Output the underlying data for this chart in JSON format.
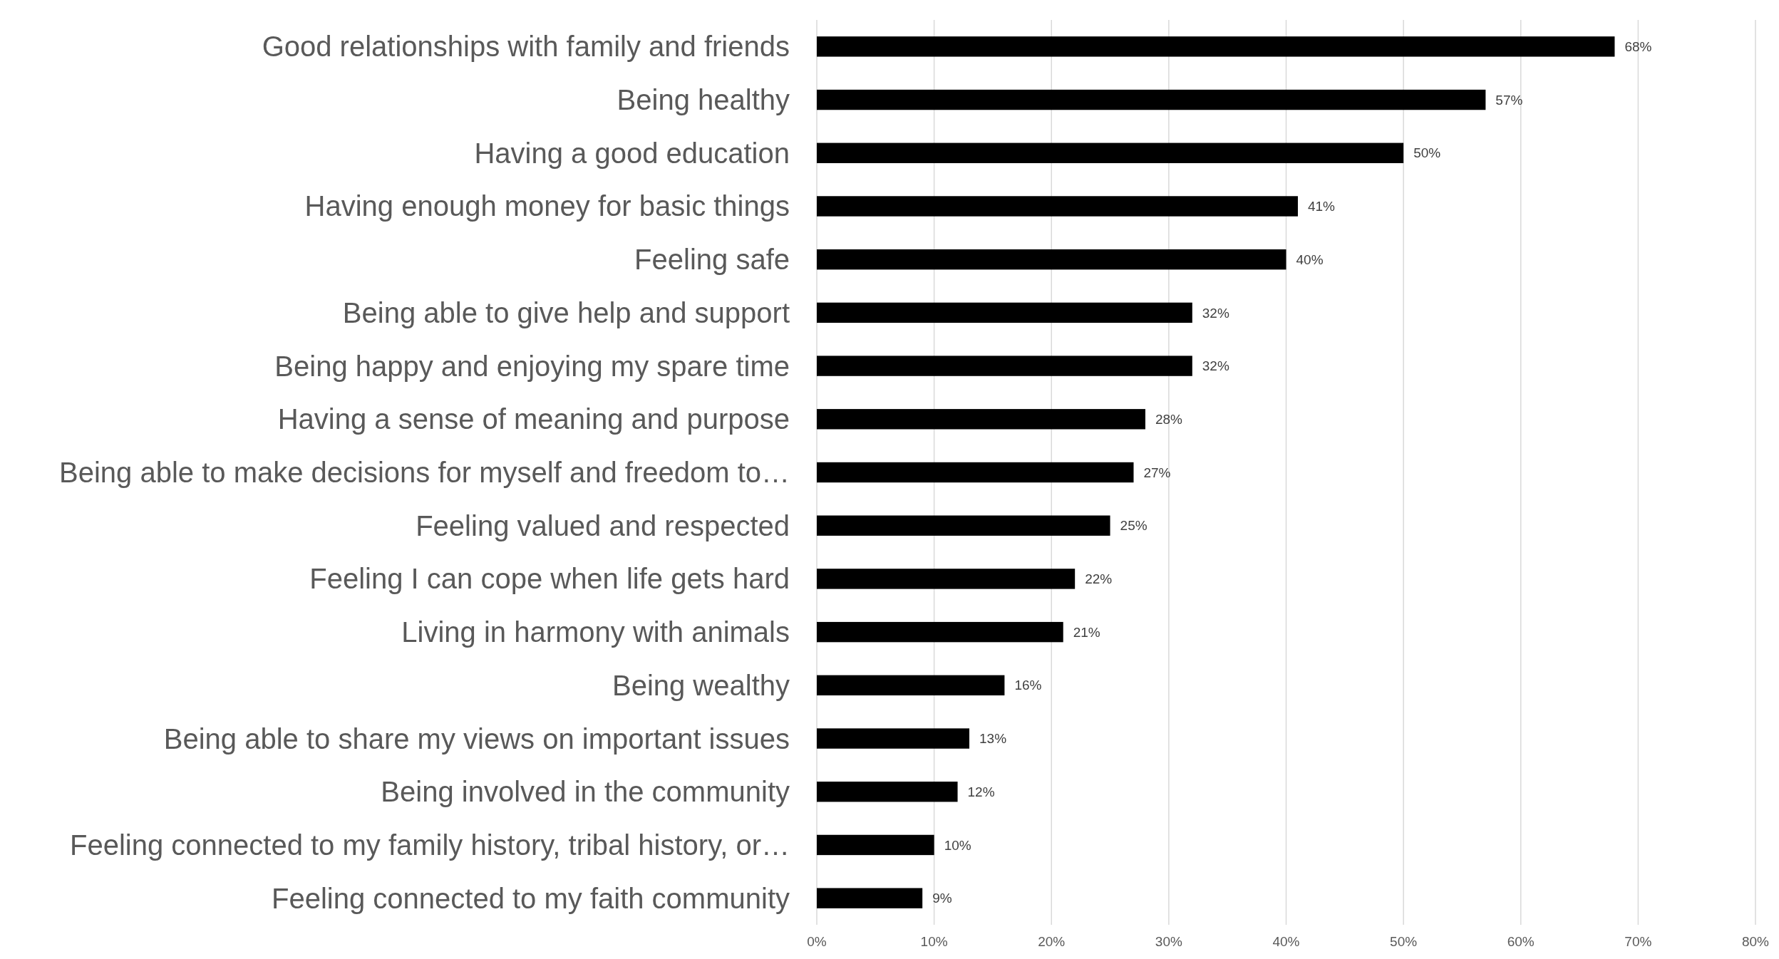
{
  "chart_data": {
    "type": "bar",
    "orientation": "horizontal",
    "categories": [
      "Good relationships with family and friends",
      "Being healthy",
      "Having a good education",
      "Having enough money for basic things",
      "Feeling safe",
      "Being able to give help and support",
      "Being happy and enjoying my spare time",
      "Having a sense of meaning and purpose",
      "Being able to make decisions for myself and freedom to…",
      "Feeling valued and respected",
      "Feeling I can cope when life gets hard",
      "Living in harmony with animals",
      "Being wealthy",
      "Being able to share my views on important issues",
      "Being involved in the community",
      "Feeling connected to my family history, tribal history, or…",
      "Feeling connected to my faith community"
    ],
    "values": [
      68,
      57,
      50,
      41,
      40,
      32,
      32,
      28,
      27,
      25,
      22,
      21,
      16,
      13,
      12,
      10,
      9
    ],
    "value_labels": [
      "68%",
      "57%",
      "50%",
      "41%",
      "40%",
      "32%",
      "32%",
      "28%",
      "27%",
      "25%",
      "22%",
      "21%",
      "16%",
      "13%",
      "12%",
      "10%",
      "9%"
    ],
    "color": "#000000",
    "xlim": [
      0,
      80
    ],
    "xticks": [
      {
        "value": 0,
        "label": "0%"
      },
      {
        "value": 10,
        "label": "10%"
      },
      {
        "value": 20,
        "label": "20%"
      },
      {
        "value": 30,
        "label": "30%"
      },
      {
        "value": 40,
        "label": "40%"
      },
      {
        "value": 50,
        "label": "50%"
      },
      {
        "value": 60,
        "label": "60%"
      },
      {
        "value": 70,
        "label": "70%"
      },
      {
        "value": 80,
        "label": "80%"
      }
    ],
    "grid": "x"
  }
}
